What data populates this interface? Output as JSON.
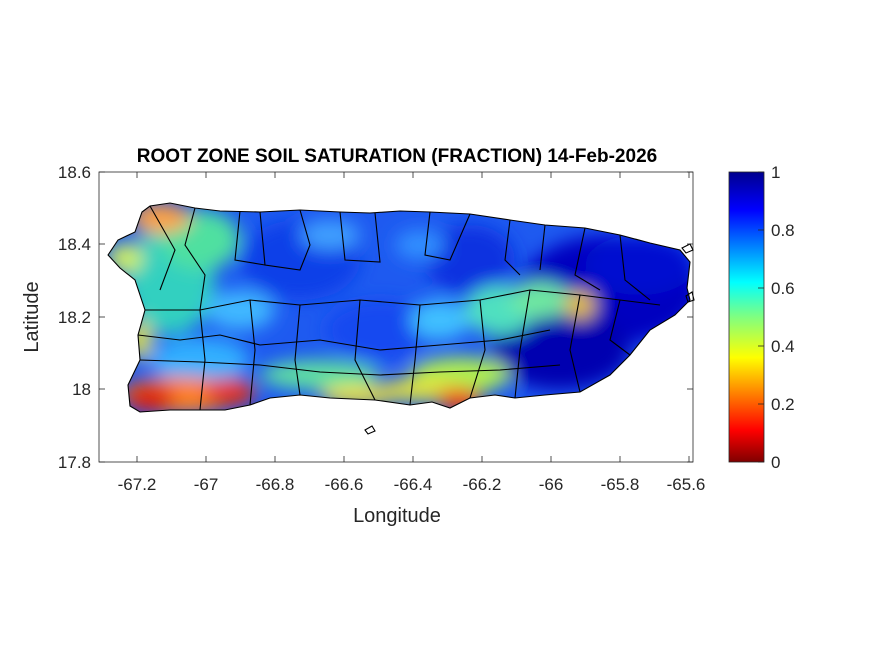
{
  "title": "ROOT ZONE SOIL SATURATION (FRACTION) 14-Feb-2026",
  "xlabel": "Longitude",
  "ylabel": "Latitude",
  "map_data": {
    "region": "Puerto Rico",
    "variable": "root zone soil saturation",
    "units": "fraction",
    "xlim": [
      -67.3,
      -65.58
    ],
    "ylim": [
      17.8,
      18.6
    ],
    "x_ticks": [
      -67.2,
      -67,
      -66.8,
      -66.6,
      -66.4,
      -66.2,
      -66,
      -65.8,
      -65.6
    ],
    "x_tick_labels": [
      "-67.2",
      "-67",
      "-66.8",
      "-66.6",
      "-66.4",
      "-66.2",
      "-66",
      "-65.8",
      "-65.6"
    ],
    "y_ticks": [
      18.6,
      18.4,
      18.2,
      18,
      17.8
    ],
    "y_tick_labels": [
      "18.6",
      "18.4",
      "18.2",
      "18",
      "17.8"
    ],
    "colorbar": {
      "colormap": "jet",
      "range": [
        0,
        1
      ],
      "ticks": [
        0,
        0.2,
        0.4,
        0.6,
        0.8,
        1
      ],
      "tick_labels": [
        "0",
        "0.2",
        "0.4",
        "0.6",
        "0.8",
        "1"
      ]
    },
    "dry_zones": [
      {
        "lon": -67.18,
        "lat": 17.97,
        "value": 0.08
      },
      {
        "lon": -67.03,
        "lat": 17.97,
        "value": 0.15
      },
      {
        "lon": -66.27,
        "lat": 17.96,
        "value": 0.15
      },
      {
        "lon": -67.12,
        "lat": 18.47,
        "value": 0.25
      },
      {
        "lon": -65.94,
        "lat": 18.22,
        "value": 0.35
      }
    ],
    "wet_zones": [
      {
        "lon": -65.9,
        "lat": 18.3,
        "value": 1.0
      },
      {
        "lon": -66.05,
        "lat": 18.1,
        "value": 1.0
      },
      {
        "lon": -66.5,
        "lat": 18.3,
        "value": 0.9
      }
    ]
  },
  "colors": {
    "outline": "#000000",
    "axis": "#262626"
  }
}
